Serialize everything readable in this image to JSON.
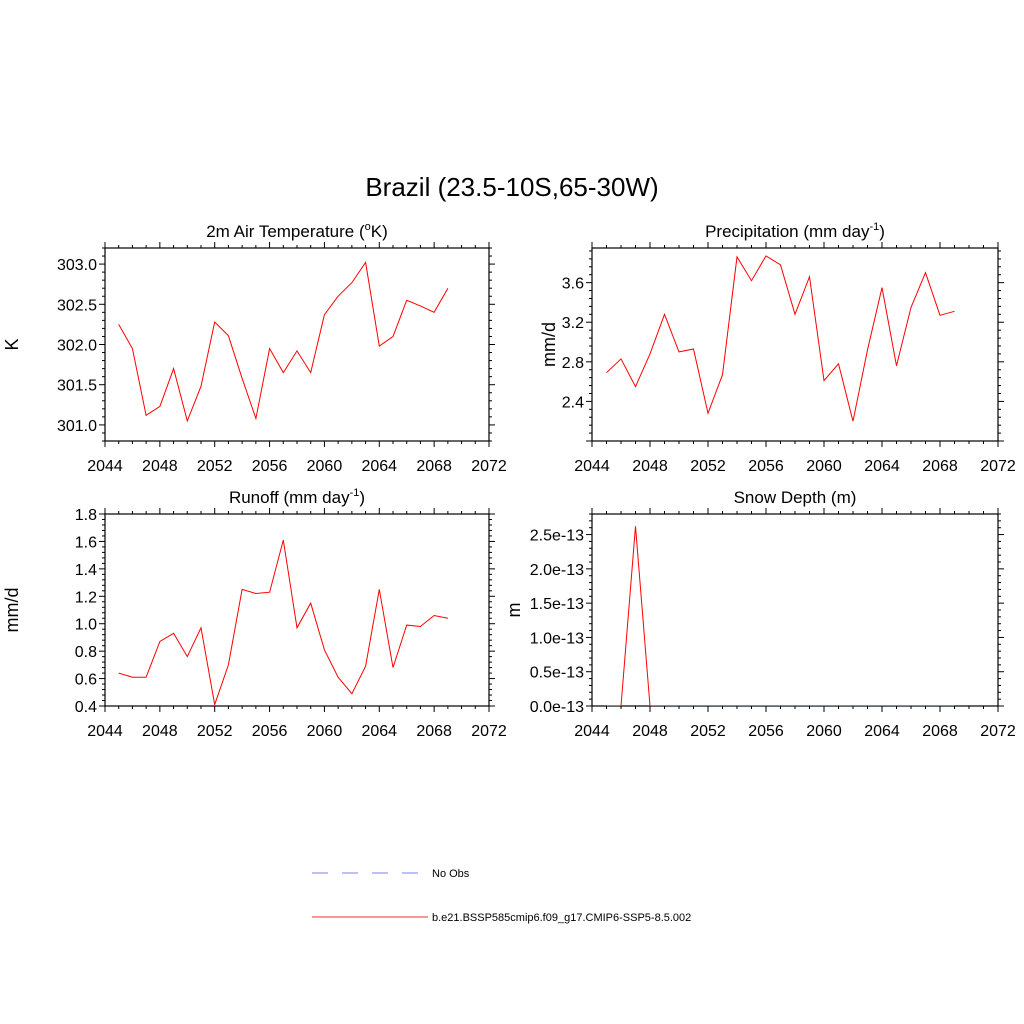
{
  "figure": {
    "title": "Brazil (23.5-10S,65-30W)"
  },
  "legend": {
    "entries": [
      {
        "label": "No Obs",
        "color": "#9999ff",
        "style": "dashed"
      },
      {
        "label": "b.e21.BSSP585cmip6.f09_g17.CMIP6-SSP5-8.5.002",
        "color": "#ff5555",
        "style": "solid"
      }
    ]
  },
  "line_color": "#ff0000",
  "chart_data": [
    {
      "type": "line",
      "title_main": "2m Air Temperature (",
      "title_sup1": "o",
      "title_end": "K)",
      "ylabel": "K",
      "xlim": [
        2044,
        2072
      ],
      "ylim": [
        300.8,
        303.2
      ],
      "xticks": [
        "2044",
        "2048",
        "2052",
        "2056",
        "2060",
        "2064",
        "2068",
        "2072"
      ],
      "yticks": [
        {
          "value": 301.0,
          "label": "301.0"
        },
        {
          "value": 301.5,
          "label": "301.5"
        },
        {
          "value": 302.0,
          "label": "302.0"
        },
        {
          "value": 302.5,
          "label": "302.5"
        },
        {
          "value": 303.0,
          "label": "303.0"
        }
      ],
      "x": [
        2045,
        2046,
        2047,
        2048,
        2049,
        2050,
        2051,
        2052,
        2053,
        2054,
        2055,
        2056,
        2057,
        2058,
        2059,
        2060,
        2061,
        2062,
        2063,
        2064,
        2065,
        2066,
        2067,
        2068,
        2069
      ],
      "y": [
        302.25,
        301.95,
        301.12,
        301.23,
        301.7,
        301.05,
        301.48,
        302.28,
        302.11,
        301.58,
        301.08,
        301.95,
        301.65,
        301.92,
        301.65,
        302.37,
        302.6,
        302.77,
        303.02,
        301.98,
        302.1,
        302.55,
        302.48,
        302.4,
        302.7
      ]
    },
    {
      "type": "line",
      "title_main": "Precipitation (mm day",
      "title_sup1": "-1",
      "title_end": ")",
      "ylabel": "mm/d",
      "xlim": [
        2044,
        2072
      ],
      "ylim": [
        2.0,
        3.95
      ],
      "xticks": [
        "2044",
        "2048",
        "2052",
        "2056",
        "2060",
        "2064",
        "2068",
        "2072"
      ],
      "yticks": [
        {
          "value": 2.4,
          "label": "2.4"
        },
        {
          "value": 2.8,
          "label": "2.8"
        },
        {
          "value": 3.2,
          "label": "3.2"
        },
        {
          "value": 3.6,
          "label": "3.6"
        }
      ],
      "x": [
        2045,
        2046,
        2047,
        2048,
        2049,
        2050,
        2051,
        2052,
        2053,
        2054,
        2055,
        2056,
        2057,
        2058,
        2059,
        2060,
        2061,
        2062,
        2063,
        2064,
        2065,
        2066,
        2067,
        2068,
        2069
      ],
      "y": [
        2.69,
        2.83,
        2.55,
        2.88,
        3.28,
        2.9,
        2.93,
        2.28,
        2.67,
        3.86,
        3.62,
        3.87,
        3.78,
        3.28,
        3.66,
        2.61,
        2.78,
        2.2,
        2.92,
        3.55,
        2.76,
        3.35,
        3.7,
        3.27,
        3.31
      ]
    },
    {
      "type": "line",
      "title_main": "Runoff (mm day",
      "title_sup1": "-1",
      "title_end": ")",
      "ylabel": "mm/d",
      "xlim": [
        2044,
        2072
      ],
      "ylim": [
        0.4,
        1.8
      ],
      "xticks": [
        "2044",
        "2048",
        "2052",
        "2056",
        "2060",
        "2064",
        "2068",
        "2072"
      ],
      "yticks": [
        {
          "value": 0.4,
          "label": "0.4"
        },
        {
          "value": 0.6,
          "label": "0.6"
        },
        {
          "value": 0.8,
          "label": "0.8"
        },
        {
          "value": 1.0,
          "label": "1.0"
        },
        {
          "value": 1.2,
          "label": "1.2"
        },
        {
          "value": 1.4,
          "label": "1.4"
        },
        {
          "value": 1.6,
          "label": "1.6"
        },
        {
          "value": 1.8,
          "label": "1.8"
        }
      ],
      "x": [
        2045,
        2046,
        2047,
        2048,
        2049,
        2050,
        2051,
        2052,
        2053,
        2054,
        2055,
        2056,
        2057,
        2058,
        2059,
        2060,
        2061,
        2062,
        2063,
        2064,
        2065,
        2066,
        2067,
        2068,
        2069
      ],
      "y": [
        0.64,
        0.61,
        0.61,
        0.87,
        0.93,
        0.76,
        0.97,
        0.41,
        0.7,
        1.25,
        1.22,
        1.23,
        1.61,
        0.97,
        1.15,
        0.81,
        0.61,
        0.49,
        0.69,
        1.25,
        0.68,
        0.99,
        0.98,
        1.06,
        1.04
      ]
    },
    {
      "type": "line",
      "title_main": "Snow Depth (m)",
      "title_sup1": "",
      "title_end": "",
      "ylabel": "m",
      "xlim": [
        2044,
        2072
      ],
      "ylim": [
        0,
        2.8
      ],
      "y_unit_note": "1e-13",
      "xticks": [
        "2044",
        "2048",
        "2052",
        "2056",
        "2060",
        "2064",
        "2068",
        "2072"
      ],
      "yticks": [
        {
          "value": 0.0,
          "label": "0.0e-13"
        },
        {
          "value": 0.5,
          "label": "0.5e-13"
        },
        {
          "value": 1.0,
          "label": "1.0e-13"
        },
        {
          "value": 1.5,
          "label": "1.5e-13"
        },
        {
          "value": 2.0,
          "label": "2.0e-13"
        },
        {
          "value": 2.5,
          "label": "2.5e-13"
        }
      ],
      "x": [
        2045,
        2046,
        2047,
        2048,
        2049,
        2050,
        2051,
        2052,
        2053,
        2054,
        2055,
        2056,
        2057,
        2058,
        2059,
        2060,
        2061,
        2062,
        2063,
        2064,
        2065,
        2066,
        2067,
        2068,
        2069
      ],
      "y": [
        0,
        0,
        2.62,
        0,
        0,
        0,
        0,
        0,
        0,
        0,
        0,
        0,
        0,
        0,
        0,
        0,
        0,
        0,
        0,
        0,
        0,
        0,
        0,
        0,
        0
      ]
    }
  ]
}
